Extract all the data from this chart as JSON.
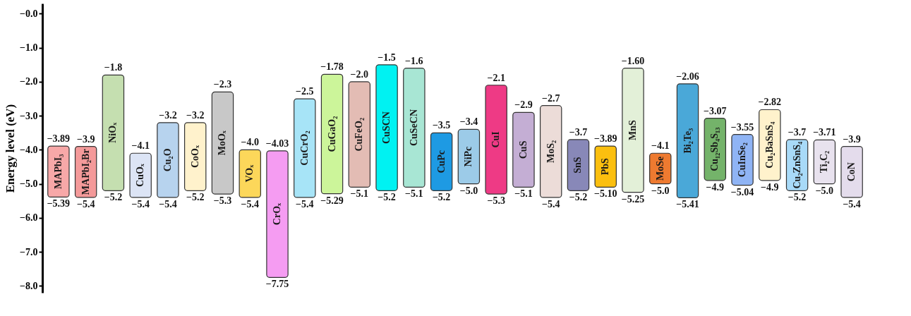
{
  "chart_data": {
    "type": "bar",
    "ylabel": "Energy level (eV)",
    "categories": [
      "MAPbI₃",
      "MAPbI₂Br",
      "NiOₓ",
      "CuOₓ",
      "Cu₂O",
      "CoOₓ",
      "MoOₓ",
      "VOₓ",
      "CrOₓ",
      "CuCrO₂",
      "CuGaO₂",
      "CuFeO₂",
      "CuSCN",
      "CuSeCN",
      "CuPc",
      "NiPc",
      "CuI",
      "CuS",
      "MoS₂",
      "SnS",
      "PbS",
      "MnS",
      "MoSe",
      "Bi₂Te₃",
      "Cu₁₂Sb₄S₁₃",
      "CuInSe₂",
      "Cu₂BaSnS₄",
      "Cu₂ZnSnS₄",
      "Ti₂C₂",
      "CoN"
    ],
    "base": [
      -5.39,
      -5.4,
      -5.2,
      -5.4,
      -5.4,
      -5.2,
      -5.3,
      -5.4,
      -7.75,
      -5.4,
      -5.29,
      -5.1,
      -5.2,
      -5.1,
      -5.2,
      -5.0,
      -5.3,
      -5.1,
      -5.4,
      -5.2,
      -5.1,
      -5.25,
      -5.0,
      -5.41,
      -4.9,
      -5.04,
      -4.9,
      -5.2,
      -5.0,
      -5.4
    ],
    "values": [
      1.5,
      1.5,
      3.4,
      1.3,
      2.2,
      2.0,
      3.0,
      1.4,
      3.72,
      2.9,
      3.51,
      3.1,
      3.7,
      3.5,
      1.7,
      1.6,
      3.2,
      2.2,
      2.7,
      1.5,
      1.21,
      3.65,
      0.9,
      3.35,
      1.83,
      1.49,
      2.08,
      1.5,
      1.29,
      1.5
    ],
    "colors": [
      "#f7a8a8",
      "#f49a9a",
      "#c5dfb0",
      "#dce4f5",
      "#b7d3ee",
      "#fff2cc",
      "#c8c8c8",
      "#fcd75a",
      "#f59cf2",
      "#a7e4f7",
      "#ccf59a",
      "#e3bcb4",
      "#00f2f2",
      "#a8e6d4",
      "#1e9ae3",
      "#9ccbe8",
      "#ee3a85",
      "#c4aed4",
      "#ecdcd8",
      "#8888b8",
      "#fbbf0f",
      "#e3f0d8",
      "#ee7a30",
      "#4aa8d8",
      "#74b36a",
      "#8fb4f5",
      "#fff2cc",
      "#a8daf8",
      "#e8e2ee",
      "#e4dcec"
    ],
    "ylim": [
      -8.2,
      0.3
    ],
    "yticks": [
      {
        "value": 0,
        "label": "−0.0"
      },
      {
        "value": -1,
        "label": "−1.0"
      },
      {
        "value": -2,
        "label": "−2.0"
      },
      {
        "value": -3,
        "label": "−3.0"
      },
      {
        "value": -4,
        "label": "−4.0"
      },
      {
        "value": -5,
        "label": "−5.0"
      },
      {
        "value": -6,
        "label": "−6.0"
      },
      {
        "value": -7,
        "label": "−7.0"
      },
      {
        "value": -8,
        "label": "−8.0"
      }
    ],
    "tick_labels": "y",
    "annotations": [
      {
        "text": "−3.89",
        "x": "MAPbI₃",
        "y": -3.89
      },
      {
        "text": "−5.39",
        "x": "MAPbI₃",
        "y": -5.39
      },
      {
        "text": "−3.9",
        "x": "MAPbI₂Br",
        "y": -3.9
      },
      {
        "text": "−5.4",
        "x": "MAPbI₂Br",
        "y": -5.4
      },
      {
        "text": "−1.8",
        "x": "NiOₓ",
        "y": -1.8
      },
      {
        "text": "−5.2",
        "x": "NiOₓ",
        "y": -5.2
      },
      {
        "text": "−4.1",
        "x": "CuOₓ",
        "y": -4.1
      },
      {
        "text": "−5.4",
        "x": "CuOₓ",
        "y": -5.4
      },
      {
        "text": "−3.2",
        "x": "Cu₂O",
        "y": -3.2
      },
      {
        "text": "−5.4",
        "x": "Cu₂O",
        "y": -5.4
      },
      {
        "text": "−3.2",
        "x": "CoOₓ",
        "y": -3.2
      },
      {
        "text": "−5.2",
        "x": "CoOₓ",
        "y": -5.2
      },
      {
        "text": "−2.3",
        "x": "MoOₓ",
        "y": -2.3
      },
      {
        "text": "−5.3",
        "x": "MoOₓ",
        "y": -5.3
      },
      {
        "text": "−4.0",
        "x": "VOₓ",
        "y": -4.0
      },
      {
        "text": "−5.4",
        "x": "VOₓ",
        "y": -5.4
      },
      {
        "text": "−4.03",
        "x": "CrOₓ",
        "y": -4.03
      },
      {
        "text": "−7.75",
        "x": "CrOₓ",
        "y": -7.75
      },
      {
        "text": "−2.5",
        "x": "CuCrO₂",
        "y": -2.5
      },
      {
        "text": "−5.4",
        "x": "CuCrO₂",
        "y": -5.4
      },
      {
        "text": "−1.78",
        "x": "CuGaO₂",
        "y": -1.78
      },
      {
        "text": "−5.29",
        "x": "CuGaO₂",
        "y": -5.29
      },
      {
        "text": "−2.0",
        "x": "CuFeO₂",
        "y": -2.0
      },
      {
        "text": "−5.1",
        "x": "CuFeO₂",
        "y": -5.1
      },
      {
        "text": "−1.5",
        "x": "CuSCN",
        "y": -1.5
      },
      {
        "text": "−5.2",
        "x": "CuSCN",
        "y": -5.2
      },
      {
        "text": "−1.6",
        "x": "CuSeCN",
        "y": -1.6
      },
      {
        "text": "−5.1",
        "x": "CuSeCN",
        "y": -5.1
      },
      {
        "text": "−3.5",
        "x": "CuPc",
        "y": -3.5
      },
      {
        "text": "−5.2",
        "x": "CuPc",
        "y": -5.2
      },
      {
        "text": "−3.4",
        "x": "NiPc",
        "y": -3.4
      },
      {
        "text": "−5.0",
        "x": "NiPc",
        "y": -5.0
      },
      {
        "text": "−2.1",
        "x": "CuI",
        "y": -2.1
      },
      {
        "text": "−5.3",
        "x": "CuI",
        "y": -5.3
      },
      {
        "text": "−2.9",
        "x": "CuS",
        "y": -2.9
      },
      {
        "text": "−5.1",
        "x": "CuS",
        "y": -5.1
      },
      {
        "text": "−2.7",
        "x": "MoS₂",
        "y": -2.7
      },
      {
        "text": "−5.4",
        "x": "MoS₂",
        "y": -5.4
      },
      {
        "text": "−3.7",
        "x": "SnS",
        "y": -3.7
      },
      {
        "text": "−5.2",
        "x": "SnS",
        "y": -5.2
      },
      {
        "text": "−3.89",
        "x": "PbS",
        "y": -3.89
      },
      {
        "text": "−5.10",
        "x": "PbS",
        "y": -5.1
      },
      {
        "text": "−1.60",
        "x": "MnS",
        "y": -1.6
      },
      {
        "text": "−5.25",
        "x": "MnS",
        "y": -5.25
      },
      {
        "text": "−4.1",
        "x": "MoSe",
        "y": -4.1
      },
      {
        "text": "−5.0",
        "x": "MoSe",
        "y": -5.0
      },
      {
        "text": "−2.06",
        "x": "Bi₂Te₃",
        "y": -2.06
      },
      {
        "text": "−5.41",
        "x": "Bi₂Te₃",
        "y": -5.41
      },
      {
        "text": "−3.07",
        "x": "Cu₁₂Sb₄S₁₃",
        "y": -3.07
      },
      {
        "text": "−4.9",
        "x": "Cu₁₂Sb₄S₁₃",
        "y": -4.9
      },
      {
        "text": "−3.55",
        "x": "CuInSe₂",
        "y": -3.55
      },
      {
        "text": "−5.04",
        "x": "CuInSe₂",
        "y": -5.04
      },
      {
        "text": "−2.82",
        "x": "Cu₂BaSnS₄",
        "y": -2.82
      },
      {
        "text": "−4.9",
        "x": "Cu₂BaSnS₄",
        "y": -4.9
      },
      {
        "text": "−3.7",
        "x": "Cu₂ZnSnS₄",
        "y": -3.7
      },
      {
        "text": "−5.2",
        "x": "Cu₂ZnSnS₄",
        "y": -5.2
      },
      {
        "text": "−3.71",
        "x": "Ti₂C₂",
        "y": -3.71
      },
      {
        "text": "−5.0",
        "x": "Ti₂C₂",
        "y": -5.0
      },
      {
        "text": "−3.9",
        "x": "CoN",
        "y": -3.9
      },
      {
        "text": "−5.4",
        "x": "CoN",
        "y": -5.4
      }
    ]
  }
}
